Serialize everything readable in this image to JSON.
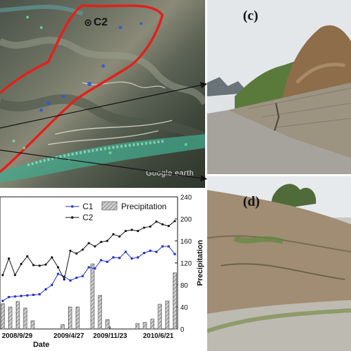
{
  "satellite": {
    "site_label": "C2",
    "watermark": "Google earth"
  },
  "photos": {
    "c_label": "(c)",
    "d_label": "(d)"
  },
  "chart_data": {
    "type": "line",
    "x_tick_labels": [
      "2008/9/29",
      "2009/4/27",
      "2009/11/23",
      "2010/6/21"
    ],
    "xlabel": "Date",
    "ylabel_right": "Precipitation",
    "y2lim": [
      0,
      240
    ],
    "y2_ticks": [
      0,
      40,
      80,
      120,
      160,
      200,
      240
    ],
    "legend_position": "top",
    "series": [
      {
        "name": "C1",
        "type": "line",
        "color": "#2233cc",
        "marker": "square",
        "values": [
          51,
          58,
          59,
          60,
          61,
          62,
          63,
          72,
          80,
          100,
          95,
          88,
          93,
          96,
          112,
          110,
          125,
          122,
          130,
          129,
          140,
          128,
          130,
          138,
          142,
          140,
          150,
          150,
          136
        ]
      },
      {
        "name": "C2",
        "type": "line",
        "color": "#111111",
        "marker": "dot",
        "values": [
          98,
          128,
          98,
          118,
          132,
          116,
          115,
          117,
          130,
          112,
          90,
          142,
          137,
          144,
          156,
          150,
          158,
          160,
          172,
          168,
          178,
          180,
          178,
          184,
          186,
          195,
          190,
          187,
          196
        ]
      },
      {
        "name": "Precipitation",
        "type": "bar",
        "color": "#aaaaaa",
        "values": [
          46,
          40,
          50,
          38,
          15,
          0,
          0,
          0,
          8,
          40,
          40,
          0,
          118,
          61,
          17,
          0,
          0,
          0,
          10,
          12,
          18,
          45,
          51,
          102
        ]
      }
    ]
  }
}
